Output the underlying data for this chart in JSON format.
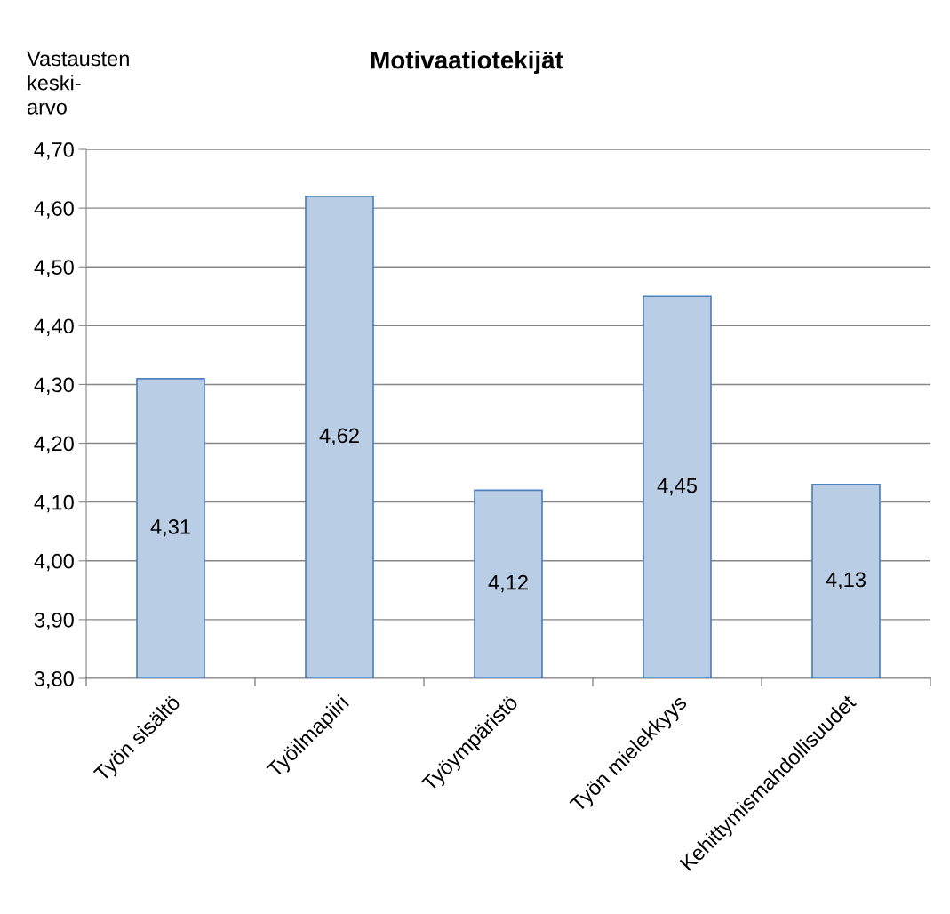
{
  "chart_data": {
    "type": "bar",
    "title": "Motivaatiotekijät",
    "ylabel": "Vastausten\nkeski-\narvo",
    "categories": [
      "Työn sisältö",
      "Työilmapiiri",
      "Työympäristö",
      "Työn mielekkyys",
      "Kehittymismahdollisuudet"
    ],
    "values": [
      4.31,
      4.62,
      4.12,
      4.45,
      4.13
    ],
    "value_labels": [
      "4,31",
      "4,62",
      "4,12",
      "4,45",
      "4,13"
    ],
    "color": "#b9cde5",
    "ylim": [
      3.8,
      4.7
    ],
    "yticks": [
      {
        "value": 3.8,
        "label": "3,80"
      },
      {
        "value": 3.9,
        "label": "3,90"
      },
      {
        "value": 4.0,
        "label": "4,00"
      },
      {
        "value": 4.1,
        "label": "4,10"
      },
      {
        "value": 4.2,
        "label": "4,20"
      },
      {
        "value": 4.3,
        "label": "4,30"
      },
      {
        "value": 4.4,
        "label": "4,40"
      },
      {
        "value": 4.5,
        "label": "4,50"
      },
      {
        "value": 4.6,
        "label": "4,60"
      },
      {
        "value": 4.7,
        "label": "4,70"
      }
    ],
    "grid": "y",
    "legend": false
  }
}
